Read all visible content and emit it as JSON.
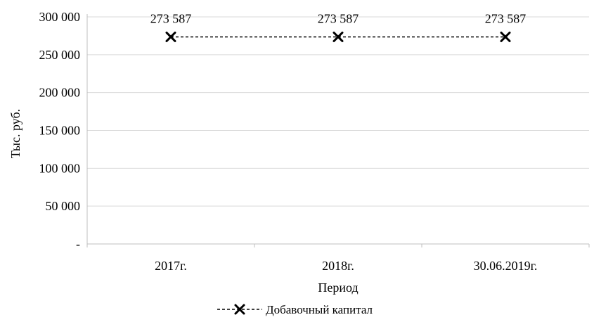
{
  "chart_data": {
    "type": "line",
    "categories": [
      "2017г.",
      "2018г.",
      "30.06.2019г."
    ],
    "series": [
      {
        "name": "Добавочный капитал",
        "values": [
          273587,
          273587,
          273587
        ],
        "color": "#000000",
        "line_style": "dashed",
        "marker": "x"
      }
    ],
    "data_labels": [
      "273 587",
      "273 587",
      "273 587"
    ],
    "xlabel": "Период",
    "ylabel": "Тыс. руб.",
    "ylim": [
      0,
      300000
    ],
    "y_ticks": [
      {
        "value": 300000,
        "label": "300 000"
      },
      {
        "value": 250000,
        "label": "250 000"
      },
      {
        "value": 200000,
        "label": "200 000"
      },
      {
        "value": 150000,
        "label": "150 000"
      },
      {
        "value": 100000,
        "label": "100 000"
      },
      {
        "value": 50000,
        "label": "50 000"
      },
      {
        "value": 0,
        "label": "-"
      }
    ],
    "grid": true,
    "grid_color": "#d9d9d9",
    "legend_position": "bottom"
  }
}
